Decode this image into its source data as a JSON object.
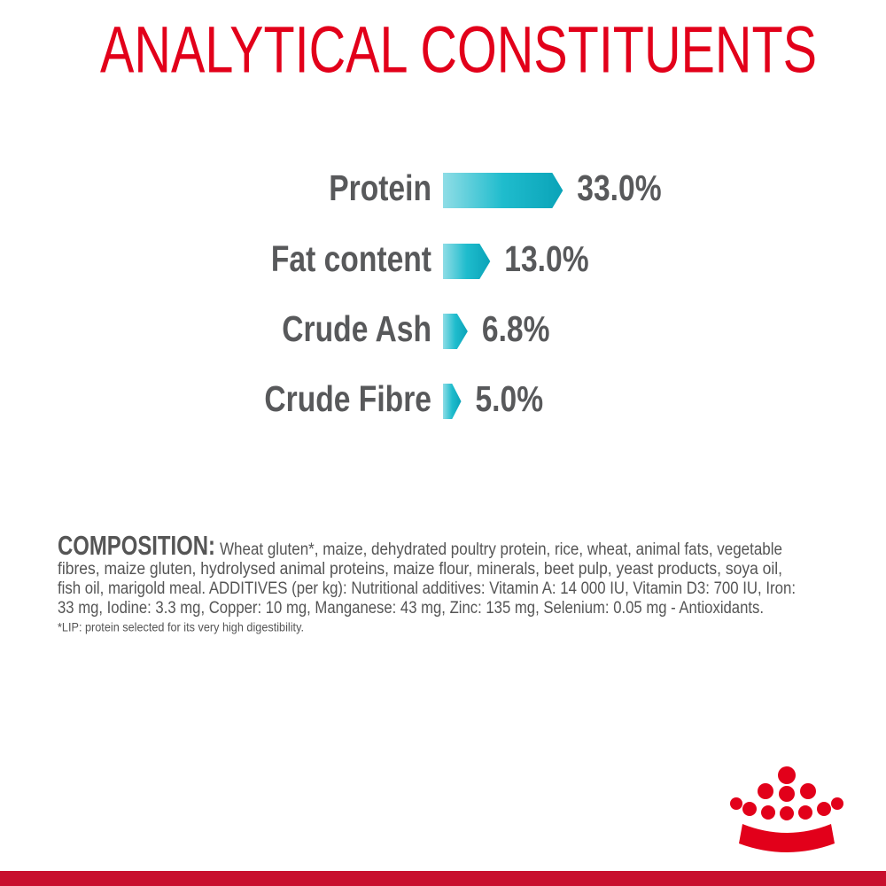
{
  "chart_data": {
    "type": "bar",
    "orientation": "horizontal",
    "title": "ANALYTICAL CONSTITUENTS",
    "categories": [
      "Protein",
      "Fat content",
      "Crude Ash",
      "Crude Fibre"
    ],
    "values": [
      33.0,
      13.0,
      6.8,
      5.0
    ],
    "value_labels": [
      "33.0%",
      "13.0%",
      "6.8%",
      "5.0%"
    ],
    "color": "#17b3c5"
  },
  "composition": {
    "heading": "COMPOSITION:",
    "lines": [
      "Wheat gluten*, maize, dehydrated poultry protein, rice, wheat, animal fats, vegetable",
      "fibres, maize gluten, hydrolysed animal proteins, maize flour, minerals, beet pulp, yeast products, soya oil,",
      "fish oil, marigold meal. ADDITIVES (per kg): Nutritional additives: Vitamin A: 14 000 IU, Vitamin D3: 700 IU, Iron:",
      "33 mg, Iodine: 3.3 mg, Copper: 10 mg, Manganese: 43 mg, Zinc: 135 mg, Selenium: 0.05 mg - Antioxidants."
    ],
    "footnote": "*LIP: protein selected for its very high digestibility."
  }
}
